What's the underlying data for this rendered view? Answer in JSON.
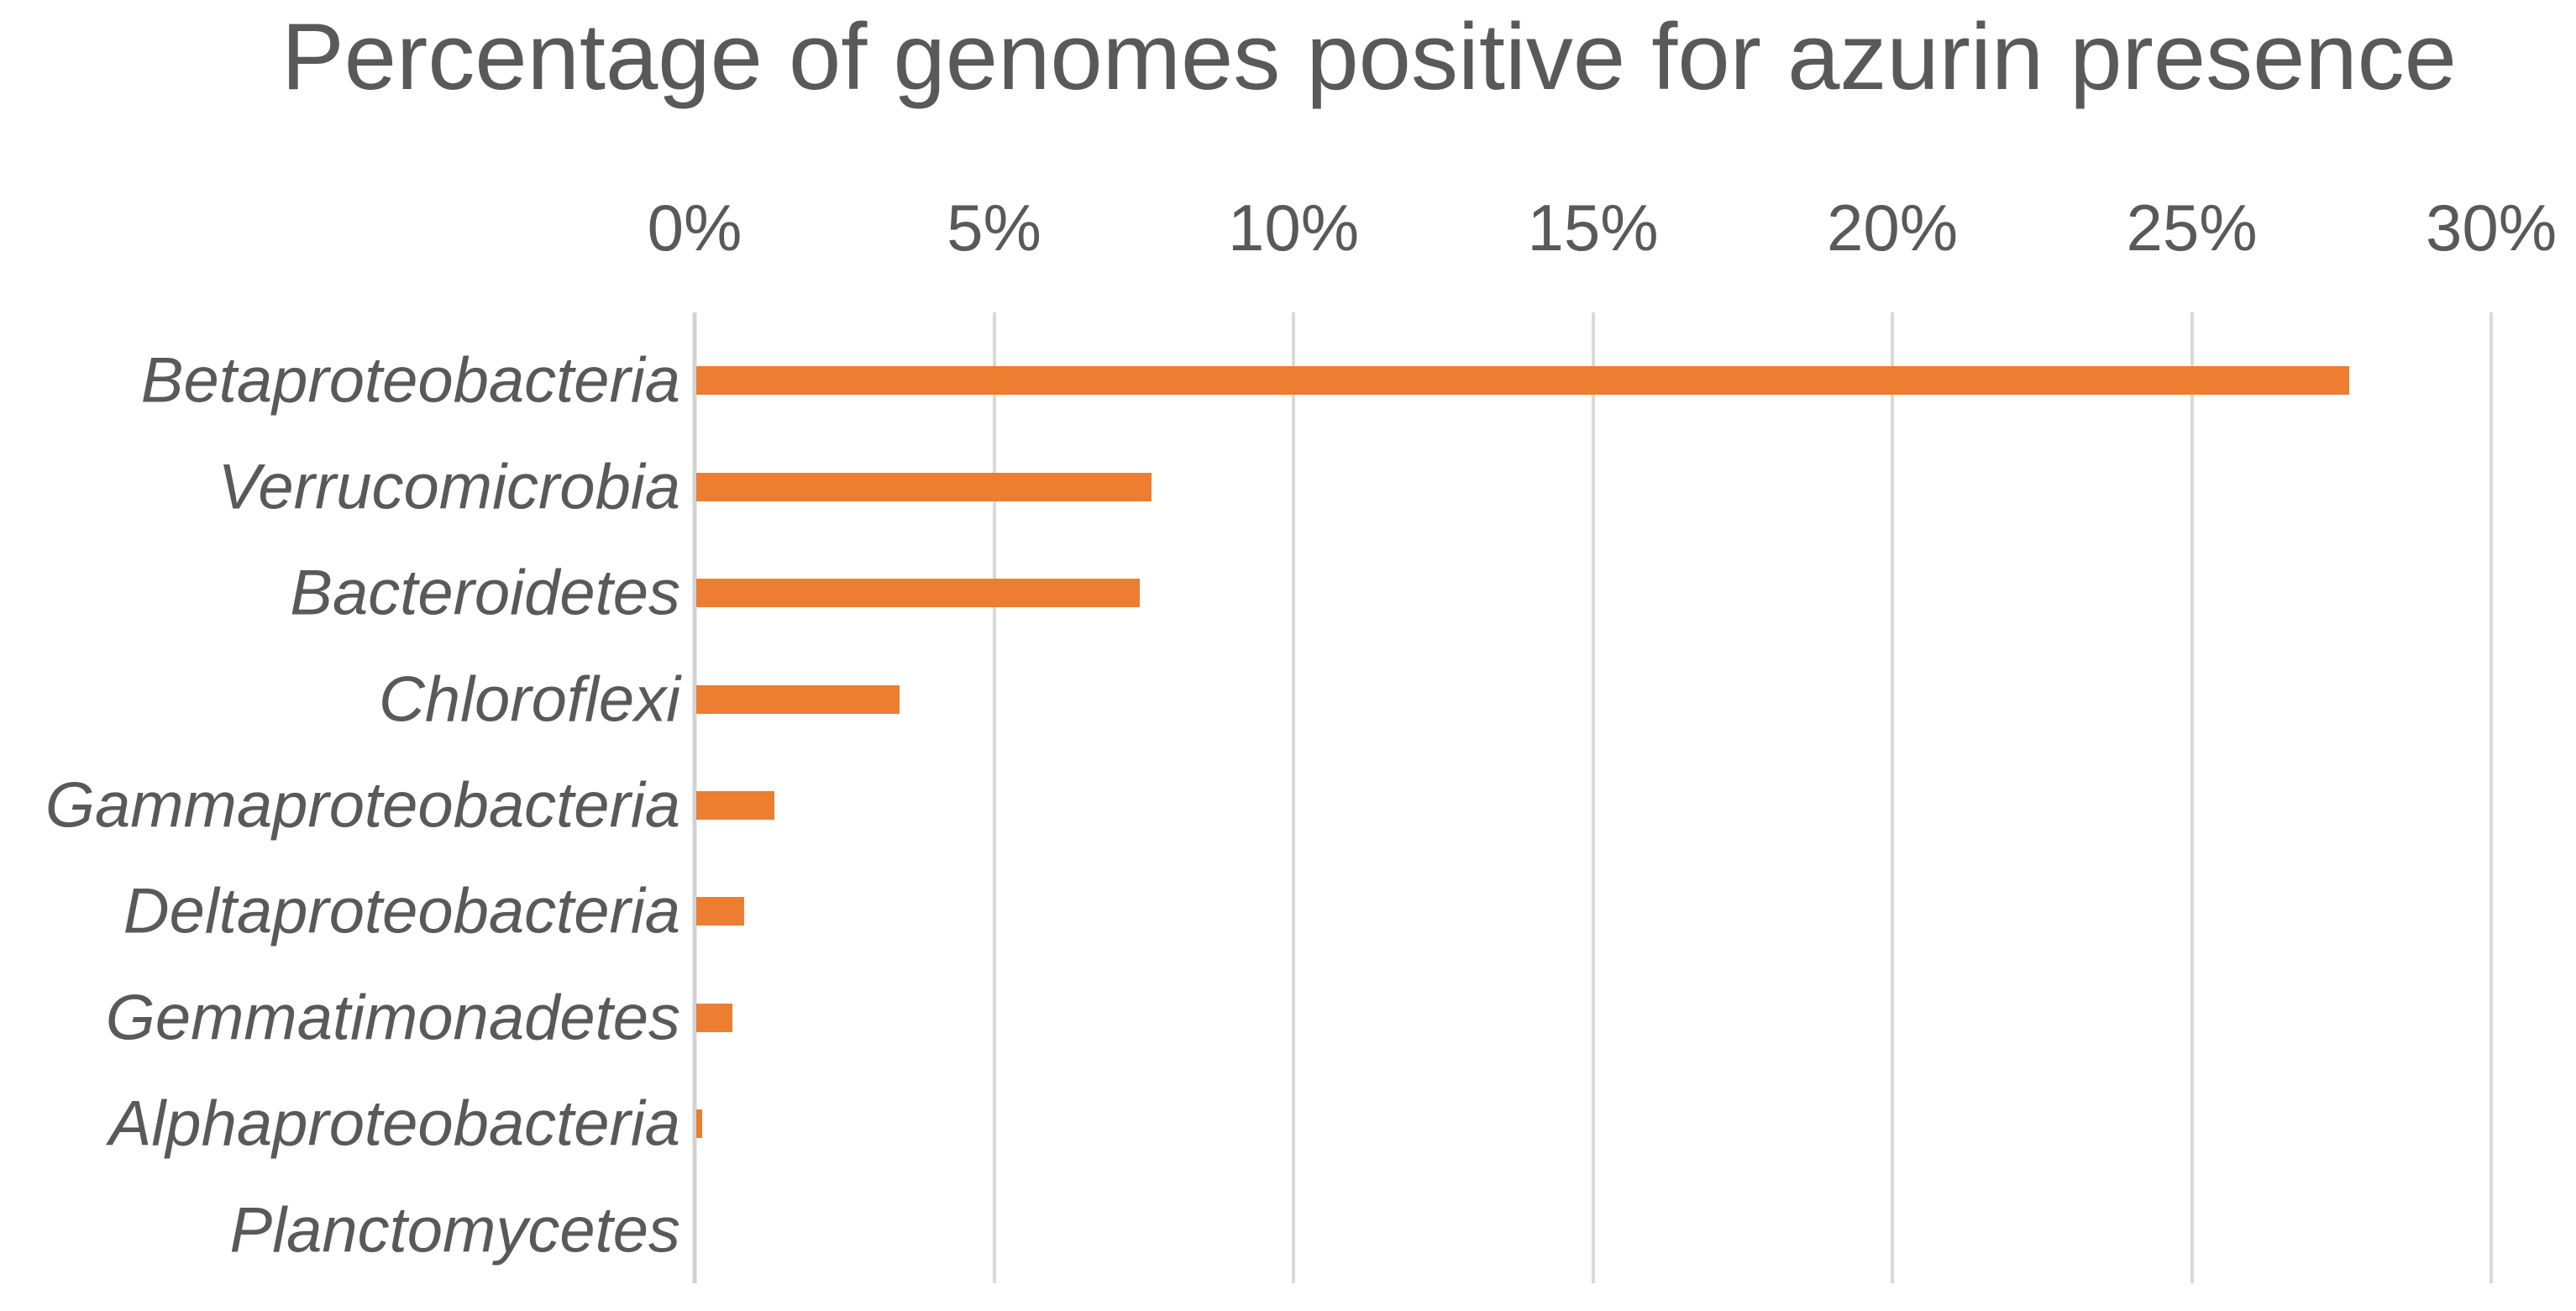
{
  "chart_data": {
    "type": "bar",
    "orientation": "horizontal",
    "title": "Percentage of genomes positive for azurin presence",
    "categories": [
      "Betaproteobacteria",
      "Verrucomicrobia",
      "Bacteroidetes",
      "Chloroflexi",
      "Gammaproteobacteria",
      "Deltaproteobacteria",
      "Gemmatimonadetes",
      "Alphaproteobacteria",
      "Planctomycetes"
    ],
    "values": [
      27.6,
      7.6,
      7.4,
      3.4,
      1.3,
      0.8,
      0.6,
      0.1,
      0
    ],
    "x_tick_labels": [
      "0%",
      "5%",
      "10%",
      "15%",
      "20%",
      "25%",
      "30%"
    ],
    "x_tick_values": [
      0,
      5,
      10,
      15,
      20,
      25,
      30
    ],
    "xlim": [
      0,
      30
    ],
    "xlabel": "",
    "ylabel": "",
    "grid": "vertical",
    "legend": "none",
    "bar_color": "#ed7d31",
    "gridline_color": "#d9d9d9",
    "text_color": "#595959"
  }
}
